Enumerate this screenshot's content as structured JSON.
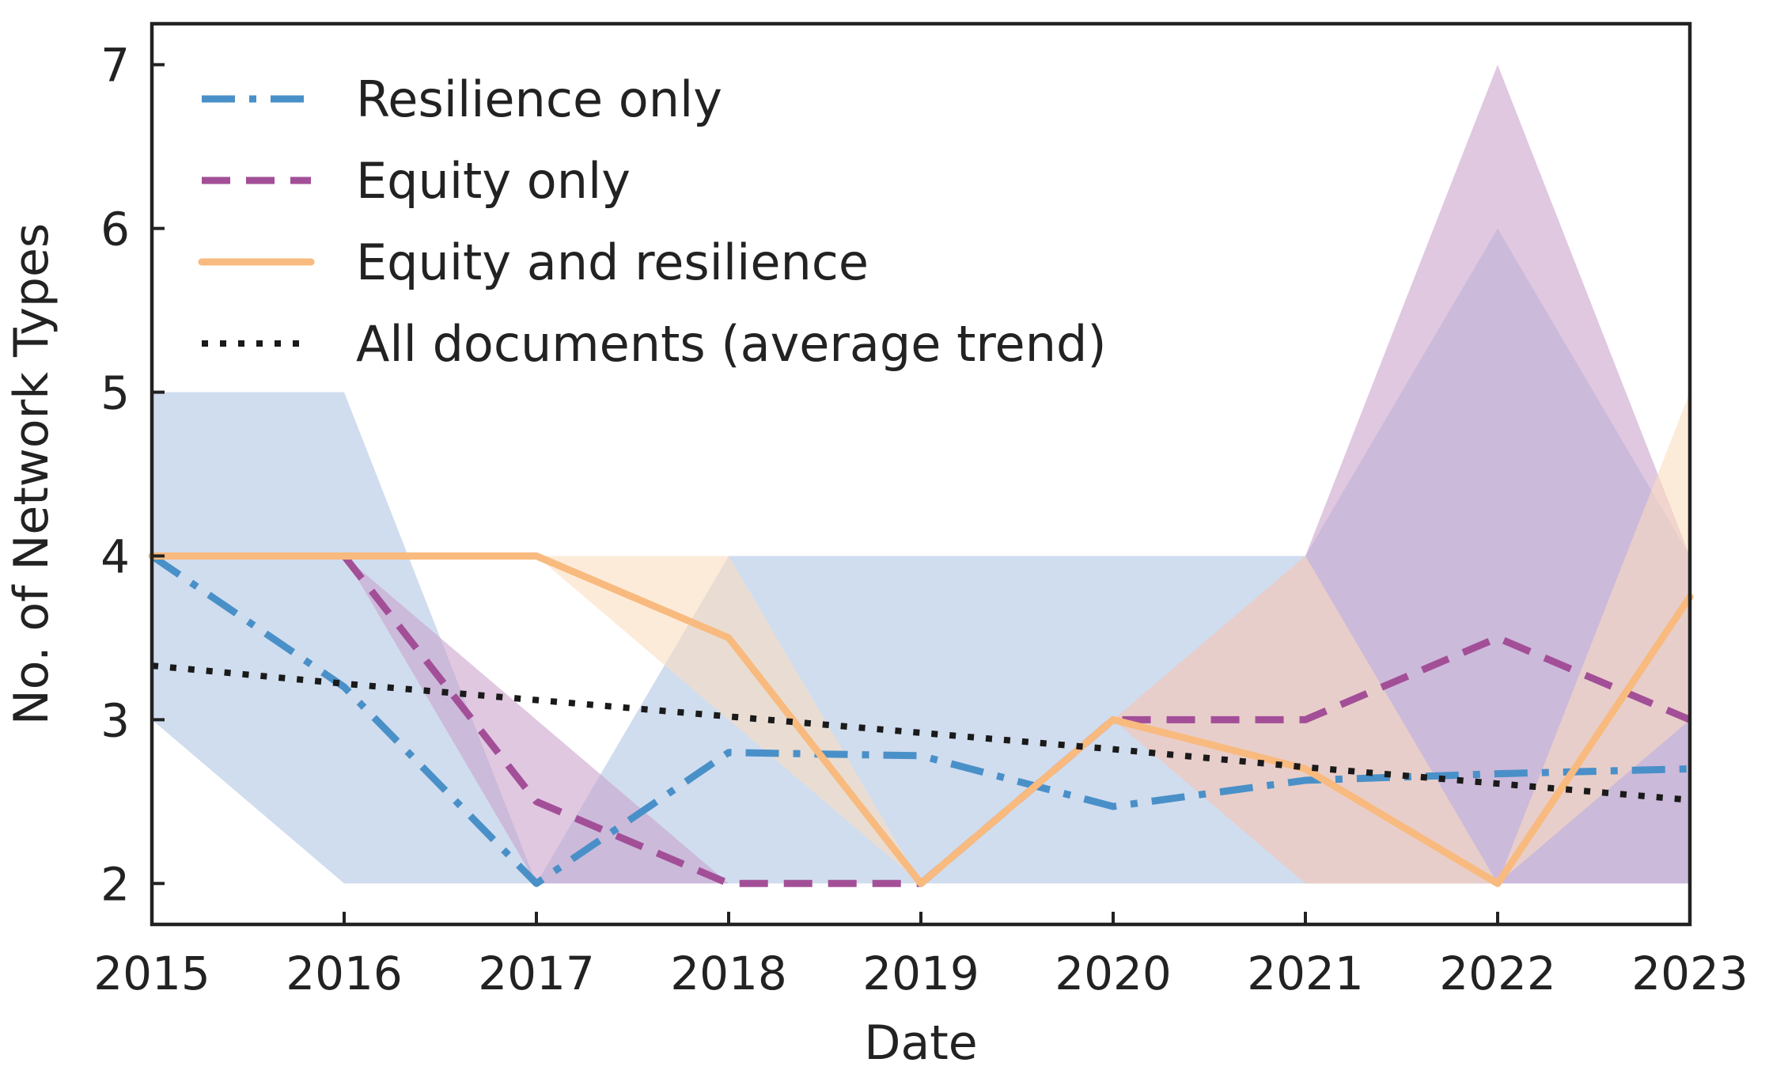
{
  "chart_data": {
    "type": "line",
    "xlabel": "Date",
    "ylabel": "No. of Network Types",
    "x": [
      2015,
      2016,
      2017,
      2018,
      2019,
      2020,
      2021,
      2022,
      2023
    ],
    "xlim": [
      2015,
      2023
    ],
    "ylim": [
      1.75,
      7.25
    ],
    "xticks": [
      "2015",
      "2016",
      "2017",
      "2018",
      "2019",
      "2020",
      "2021",
      "2022",
      "2023"
    ],
    "yticks": [
      "2",
      "3",
      "4",
      "5",
      "6",
      "7"
    ],
    "grid": false,
    "legend_position": "top-left",
    "series": [
      {
        "name": "Resilience only",
        "color": "#4a90c8",
        "band_color": "#aec5e4",
        "style": "dashdot",
        "values": [
          4.0,
          3.2,
          2.0,
          2.8,
          2.78,
          2.47,
          2.63,
          2.67,
          2.7
        ],
        "band_low": [
          3.0,
          2.0,
          2.0,
          2.0,
          2.0,
          2.0,
          2.0,
          2.0,
          2.0
        ],
        "band_high": [
          5.0,
          5.0,
          2.0,
          4.0,
          4.0,
          4.0,
          4.0,
          6.0,
          4.0
        ]
      },
      {
        "name": "Equity only",
        "color": "#a34f98",
        "band_color": "#c9a1cc",
        "style": "dashed",
        "values": [
          null,
          4.0,
          2.5,
          2.0,
          2.0,
          3.0,
          3.0,
          3.5,
          3.0
        ],
        "band_low": [
          null,
          4.0,
          2.0,
          2.0,
          2.0,
          3.0,
          2.0,
          2.0,
          2.0
        ],
        "band_high": [
          null,
          4.0,
          3.0,
          2.0,
          2.0,
          3.0,
          4.0,
          7.0,
          4.0
        ]
      },
      {
        "name": "Equity and resilience",
        "color": "#f8ba7e",
        "band_color": "#fcdcc0",
        "style": "solid",
        "values": [
          4.0,
          4.0,
          4.0,
          3.5,
          2.0,
          3.0,
          2.7,
          2.0,
          3.75
        ],
        "band_low": [
          4.0,
          4.0,
          4.0,
          3.0,
          2.0,
          3.0,
          2.0,
          2.0,
          3.0
        ],
        "band_high": [
          4.0,
          4.0,
          4.0,
          4.0,
          2.0,
          3.0,
          4.0,
          2.0,
          5.0
        ]
      },
      {
        "name": "All documents (average trend)",
        "color": "#1a1a1a",
        "style": "dotted",
        "values": [
          3.33,
          3.22,
          3.12,
          3.02,
          2.92,
          2.82,
          2.71,
          2.61,
          2.51
        ]
      }
    ]
  }
}
